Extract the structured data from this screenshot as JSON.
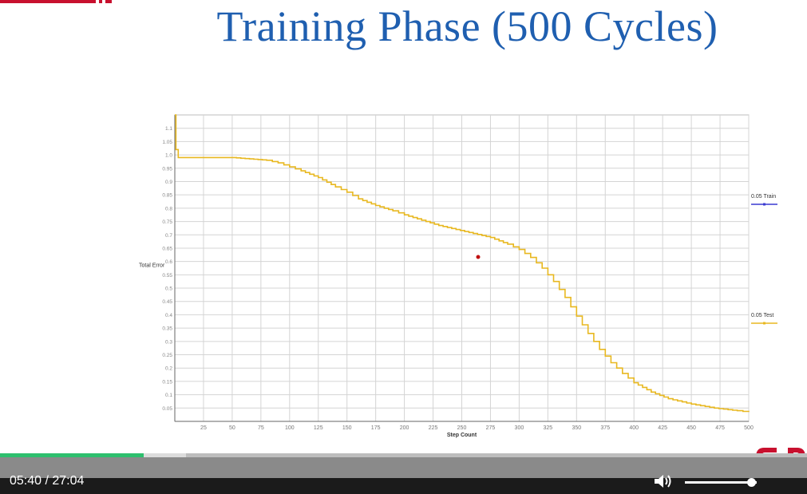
{
  "slide": {
    "title": "Training Phase (500 Cycles)"
  },
  "chart_data": {
    "type": "line",
    "xlabel": "Step Count",
    "ylabel": "Total Error",
    "xlim": [
      0,
      500
    ],
    "ylim": [
      0,
      1.15
    ],
    "x_ticks": [
      25,
      50,
      75,
      100,
      125,
      150,
      175,
      200,
      225,
      250,
      275,
      300,
      325,
      350,
      375,
      400,
      425,
      450,
      475,
      500
    ],
    "y_ticks": [
      0.05,
      0.1,
      0.15,
      0.2,
      0.25,
      0.3,
      0.35,
      0.4,
      0.45,
      0.5,
      0.55,
      0.6,
      0.65,
      0.7,
      0.75,
      0.8,
      0.85,
      0.9,
      0.95,
      1.0,
      1.05,
      1.1
    ],
    "y_tick_labels": [
      "0.05",
      "0.1",
      "0.15",
      "0.2",
      "0.25",
      "0.3",
      "0.35",
      "0.4",
      "0.45",
      "0.5",
      "0.55",
      "0.6",
      "0.65",
      "0.7",
      "0.75",
      "0.8",
      "0.85",
      "0.9",
      "0.95",
      "1.0",
      "1.05",
      "1.1"
    ],
    "grid": true,
    "legend_position": "right",
    "series": [
      {
        "name": "0.05 Train",
        "color": "#3a3ad0",
        "x": [],
        "y": []
      },
      {
        "name": "0.05 Test",
        "color": "#e8b820",
        "x": [
          0,
          1,
          3,
          10,
          30,
          50,
          65,
          80,
          90,
          100,
          110,
          125,
          140,
          150,
          160,
          175,
          190,
          200,
          215,
          230,
          245,
          260,
          275,
          290,
          300,
          310,
          320,
          330,
          340,
          350,
          360,
          370,
          380,
          390,
          400,
          415,
          430,
          450,
          470,
          490,
          500
        ],
        "y": [
          1.15,
          1.02,
          0.99,
          0.99,
          0.99,
          0.99,
          0.985,
          0.98,
          0.97,
          0.955,
          0.94,
          0.915,
          0.88,
          0.86,
          0.835,
          0.81,
          0.79,
          0.775,
          0.755,
          0.735,
          0.72,
          0.705,
          0.69,
          0.665,
          0.645,
          0.615,
          0.575,
          0.525,
          0.465,
          0.395,
          0.33,
          0.27,
          0.22,
          0.18,
          0.145,
          0.11,
          0.085,
          0.065,
          0.05,
          0.04,
          0.035
        ]
      }
    ]
  },
  "player": {
    "current_time": "05:40",
    "total_time": "27:04",
    "time_label": "05:40 / 27:04",
    "progress_fraction": 0.178,
    "buffered_fraction": 0.23,
    "volume_fraction": 0.92,
    "volume_icon": "speaker-icon",
    "accent_color": "#2ebf6e"
  },
  "brand": {
    "logo_icon": "brand-logo-icon",
    "color": "#c8102e"
  }
}
